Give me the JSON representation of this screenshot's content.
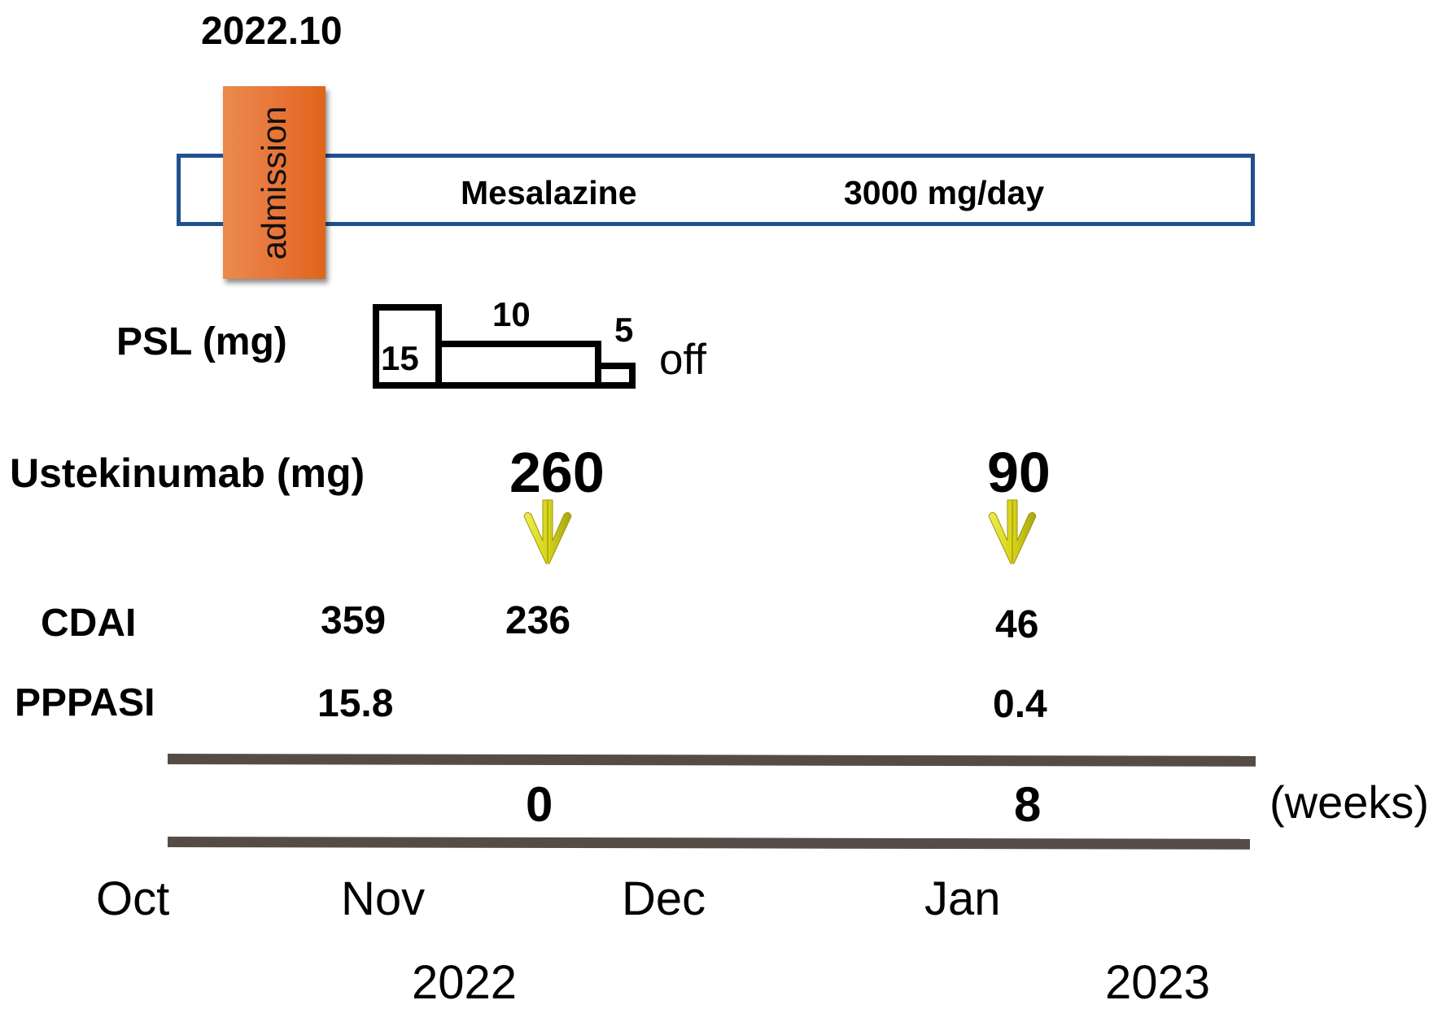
{
  "header": {
    "date": "2022.10"
  },
  "admission": {
    "label": "admission",
    "color": "#e8763a"
  },
  "mesalazine": {
    "name": "Mesalazine",
    "dose": "3000 mg/day",
    "border_color": "#21508f"
  },
  "psl": {
    "label": "PSL (mg)",
    "steps": [
      {
        "dose": "15"
      },
      {
        "dose": "10"
      },
      {
        "dose": "5"
      }
    ],
    "end_label": "off"
  },
  "ustekinumab": {
    "label": "Ustekinumab (mg)",
    "doses": [
      {
        "value": "260",
        "icon": "down-arrow-icon"
      },
      {
        "value": "90",
        "icon": "down-arrow-icon"
      }
    ],
    "arrow_color": "#d7d41a"
  },
  "scores": {
    "cdai": {
      "label": "CDAI",
      "values": [
        "359",
        "236",
        "46"
      ]
    },
    "pppasi": {
      "label": "PPPASI",
      "values": [
        "15.8",
        "0.4"
      ]
    }
  },
  "weeks": {
    "ticks": [
      "0",
      "8"
    ],
    "unit": "(weeks)",
    "rule_color": "#564c47"
  },
  "months": [
    "Oct",
    "Nov",
    "Dec",
    "Jan"
  ],
  "years": [
    "2022",
    "2023"
  ]
}
